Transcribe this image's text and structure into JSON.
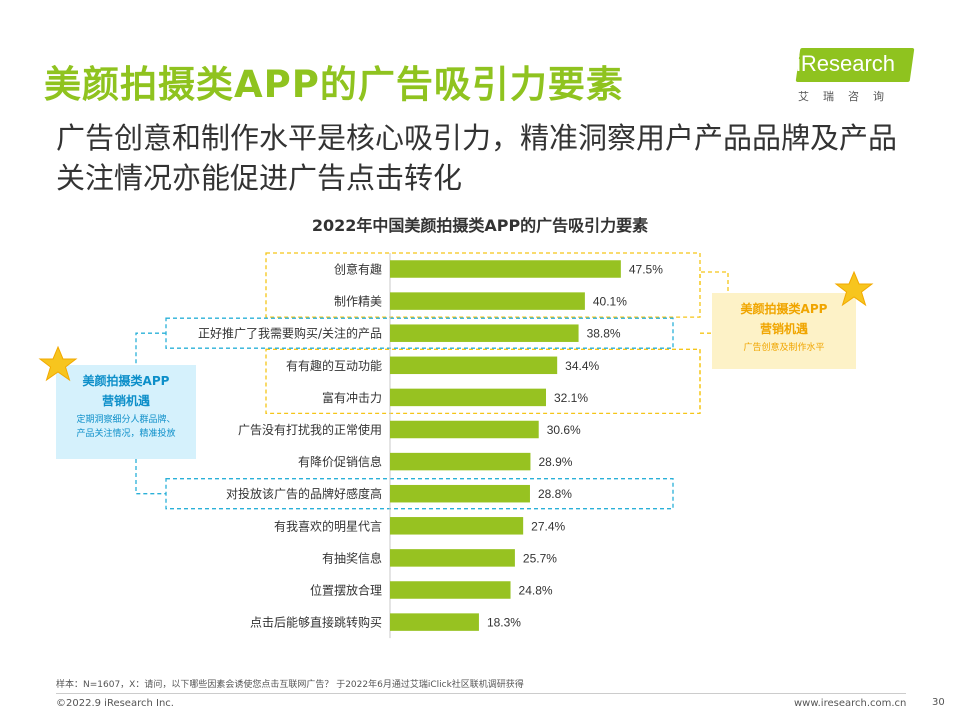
{
  "page": {
    "title": "美颜拍摄类APP的广告吸引力要素",
    "subtitle": "广告创意和制作水平是核心吸引力，精准洞察用户产品品牌及产品关注情况亦能促进广告点击转化",
    "logo_text": "iResearch",
    "logo_sub": "艾瑞咨询",
    "footnote": "样本：N=1607，X：请问，以下哪些因素会诱使您点击互联网广告？ 于2022年6月通过艾瑞iClick社区联机调研获得",
    "footer_left": "©2022.9 iResearch Inc.",
    "footer_right": "www.iresearch.com.cn",
    "page_number": "30"
  },
  "callouts": {
    "left": {
      "heading_line1": "美颜拍摄类APP",
      "heading_line2": "营销机遇",
      "desc_line1": "定期洞察细分人群品牌、",
      "desc_line2": "产品关注情况，精准投放"
    },
    "right": {
      "heading_line1": "美颜拍摄类APP",
      "heading_line2": "营销机遇",
      "desc": "广告创意及制作水平"
    }
  },
  "colors": {
    "bar": "#97c221",
    "title": "#8fc31f",
    "yellow_frame": "#f5c518",
    "blue_frame": "#2ab0d8"
  },
  "icons": [
    "star-icon"
  ],
  "chart_data": {
    "type": "bar",
    "orientation": "horizontal",
    "title": "2022年中国美颜拍摄类APP的广告吸引力要素",
    "categories": [
      "创意有趣",
      "制作精美",
      "正好推广了我需要购买/关注的产品",
      "有有趣的互动功能",
      "富有冲击力",
      "广告没有打扰我的正常使用",
      "有降价促销信息",
      "对投放该广告的品牌好感度高",
      "有我喜欢的明星代言",
      "有抽奖信息",
      "位置摆放合理",
      "点击后能够直接跳转购买"
    ],
    "values": [
      47.5,
      40.1,
      38.8,
      34.4,
      32.1,
      30.6,
      28.9,
      28.8,
      27.4,
      25.7,
      24.8,
      18.3
    ],
    "value_labels": [
      "47.5%",
      "40.1%",
      "38.8%",
      "34.4%",
      "32.1%",
      "30.6%",
      "28.9%",
      "28.8%",
      "27.4%",
      "25.7%",
      "24.8%",
      "18.3%"
    ],
    "unit": "%",
    "grid": false,
    "legend": "none"
  }
}
